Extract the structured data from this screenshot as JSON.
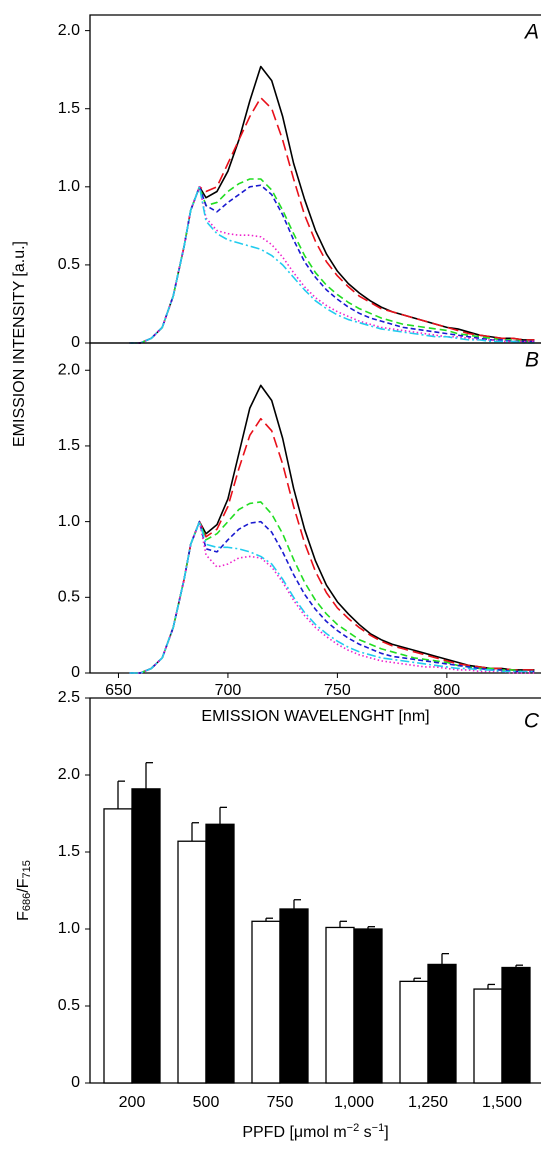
{
  "chart_data": [
    {
      "type": "line",
      "label": "A",
      "ylabel": "EMISSION INTENSITY [a.u.]",
      "x": [
        655,
        660,
        665,
        670,
        675,
        680,
        683,
        687,
        690,
        695,
        700,
        705,
        710,
        715,
        720,
        725,
        730,
        735,
        740,
        745,
        750,
        755,
        760,
        765,
        770,
        775,
        780,
        785,
        790,
        795,
        800,
        805,
        810,
        815,
        820,
        825,
        830,
        835,
        840
      ],
      "xlim": [
        637,
        843
      ],
      "ylim": [
        0,
        2.1
      ],
      "yticks": [
        0,
        0.5,
        {
          "value": 1,
          "label": "1.0"
        },
        1.5,
        {
          "value": 2,
          "label": "2.0"
        }
      ],
      "series": [
        {
          "color": "#000000",
          "linestyle": "solid",
          "values": [
            0,
            0,
            0.03,
            0.1,
            0.3,
            0.62,
            0.85,
            1.0,
            0.93,
            0.97,
            1.1,
            1.3,
            1.55,
            1.77,
            1.68,
            1.45,
            1.15,
            0.92,
            0.72,
            0.57,
            0.46,
            0.38,
            0.32,
            0.27,
            0.23,
            0.2,
            0.18,
            0.16,
            0.14,
            0.12,
            0.1,
            0.09,
            0.07,
            0.05,
            0.04,
            0.03,
            0.03,
            0.02,
            0.02
          ]
        },
        {
          "color": "#e8101a",
          "linestyle": "long-dash",
          "values": [
            0,
            0,
            0.03,
            0.1,
            0.3,
            0.62,
            0.85,
            1.0,
            0.97,
            1.0,
            1.15,
            1.3,
            1.45,
            1.57,
            1.5,
            1.3,
            1.05,
            0.82,
            0.65,
            0.52,
            0.43,
            0.36,
            0.3,
            0.26,
            0.22,
            0.2,
            0.18,
            0.16,
            0.14,
            0.12,
            0.1,
            0.08,
            0.06,
            0.05,
            0.04,
            0.03,
            0.03,
            0.02,
            0.02
          ]
        },
        {
          "color": "#22dd22",
          "linestyle": "dash",
          "values": [
            0,
            0,
            0.03,
            0.1,
            0.3,
            0.62,
            0.85,
            1.0,
            0.88,
            0.9,
            0.97,
            1.02,
            1.05,
            1.05,
            0.98,
            0.85,
            0.7,
            0.56,
            0.45,
            0.37,
            0.31,
            0.26,
            0.22,
            0.19,
            0.16,
            0.14,
            0.12,
            0.11,
            0.1,
            0.09,
            0.08,
            0.06,
            0.05,
            0.04,
            0.03,
            0.02,
            0.02,
            0.01,
            0.01
          ]
        },
        {
          "color": "#1a1ad0",
          "linestyle": "short-dash",
          "values": [
            0,
            0,
            0.03,
            0.1,
            0.3,
            0.62,
            0.85,
            1.0,
            0.88,
            0.84,
            0.9,
            0.95,
            1.0,
            1.01,
            0.95,
            0.82,
            0.66,
            0.52,
            0.42,
            0.34,
            0.28,
            0.23,
            0.19,
            0.16,
            0.14,
            0.12,
            0.1,
            0.09,
            0.08,
            0.07,
            0.06,
            0.05,
            0.04,
            0.03,
            0.02,
            0.02,
            0.01,
            0.01,
            0.01
          ]
        },
        {
          "color": "#ee22cc",
          "linestyle": "dot",
          "values": [
            0,
            0,
            0.03,
            0.1,
            0.3,
            0.62,
            0.85,
            1.0,
            0.8,
            0.72,
            0.7,
            0.69,
            0.69,
            0.68,
            0.63,
            0.55,
            0.45,
            0.36,
            0.29,
            0.24,
            0.2,
            0.17,
            0.14,
            0.12,
            0.1,
            0.09,
            0.08,
            0.07,
            0.06,
            0.05,
            0.04,
            0.04,
            0.03,
            0.02,
            0.02,
            0.01,
            0.01,
            0.01,
            0.01
          ]
        },
        {
          "color": "#22ccee",
          "linestyle": "dash-dot",
          "values": [
            0,
            0,
            0.03,
            0.1,
            0.3,
            0.62,
            0.85,
            1.0,
            0.78,
            0.7,
            0.66,
            0.64,
            0.62,
            0.6,
            0.56,
            0.5,
            0.42,
            0.34,
            0.27,
            0.22,
            0.18,
            0.15,
            0.13,
            0.11,
            0.09,
            0.08,
            0.07,
            0.06,
            0.05,
            0.04,
            0.04,
            0.03,
            0.02,
            0.02,
            0.01,
            0.01,
            0.01,
            0,
            0
          ]
        }
      ]
    },
    {
      "type": "line",
      "label": "B",
      "xlabel": "EMISSION WAVELENGHT [nm]",
      "x": [
        655,
        660,
        665,
        670,
        675,
        680,
        683,
        687,
        690,
        695,
        700,
        705,
        710,
        715,
        720,
        725,
        730,
        735,
        740,
        745,
        750,
        755,
        760,
        765,
        770,
        775,
        780,
        785,
        790,
        795,
        800,
        805,
        810,
        815,
        820,
        825,
        830,
        835,
        840
      ],
      "xlim": [
        637,
        843
      ],
      "xticks": [
        650,
        700,
        750,
        800
      ],
      "ylim": [
        0,
        2.18
      ],
      "yticks": [
        0,
        0.5,
        {
          "value": 1,
          "label": "1.0"
        },
        1.5,
        {
          "value": 2,
          "label": "2.0"
        }
      ],
      "series": [
        {
          "color": "#000000",
          "linestyle": "solid",
          "values": [
            0,
            0,
            0.03,
            0.1,
            0.3,
            0.62,
            0.85,
            1.0,
            0.92,
            0.98,
            1.15,
            1.45,
            1.75,
            1.9,
            1.8,
            1.55,
            1.22,
            0.95,
            0.74,
            0.58,
            0.47,
            0.39,
            0.32,
            0.26,
            0.22,
            0.19,
            0.17,
            0.15,
            0.13,
            0.11,
            0.09,
            0.07,
            0.05,
            0.04,
            0.03,
            0.03,
            0.02,
            0.02,
            0.02
          ]
        },
        {
          "color": "#e8101a",
          "linestyle": "long-dash",
          "values": [
            0,
            0,
            0.03,
            0.1,
            0.3,
            0.62,
            0.85,
            1.0,
            0.9,
            0.95,
            1.1,
            1.35,
            1.57,
            1.68,
            1.6,
            1.38,
            1.1,
            0.86,
            0.67,
            0.53,
            0.43,
            0.36,
            0.3,
            0.25,
            0.21,
            0.18,
            0.16,
            0.14,
            0.12,
            0.1,
            0.08,
            0.06,
            0.05,
            0.04,
            0.03,
            0.03,
            0.02,
            0.02,
            0.02
          ]
        },
        {
          "color": "#22dd22",
          "linestyle": "dash",
          "values": [
            0,
            0,
            0.03,
            0.1,
            0.3,
            0.62,
            0.85,
            1.0,
            0.88,
            0.92,
            1.0,
            1.08,
            1.12,
            1.13,
            1.05,
            0.92,
            0.75,
            0.6,
            0.48,
            0.39,
            0.32,
            0.27,
            0.22,
            0.19,
            0.16,
            0.14,
            0.12,
            0.1,
            0.09,
            0.08,
            0.07,
            0.05,
            0.04,
            0.03,
            0.03,
            0.02,
            0.02,
            0.01,
            0.01
          ]
        },
        {
          "color": "#1a1ad0",
          "linestyle": "short-dash",
          "values": [
            0,
            0,
            0.03,
            0.1,
            0.3,
            0.62,
            0.85,
            1.0,
            0.82,
            0.8,
            0.88,
            0.95,
            0.99,
            1.0,
            0.93,
            0.8,
            0.65,
            0.52,
            0.42,
            0.34,
            0.28,
            0.23,
            0.19,
            0.16,
            0.13,
            0.11,
            0.1,
            0.09,
            0.08,
            0.07,
            0.06,
            0.05,
            0.04,
            0.03,
            0.02,
            0.02,
            0.01,
            0.01,
            0.01
          ]
        },
        {
          "color": "#ee22cc",
          "linestyle": "dot",
          "values": [
            0,
            0,
            0.03,
            0.1,
            0.3,
            0.62,
            0.85,
            1.0,
            0.78,
            0.7,
            0.72,
            0.76,
            0.77,
            0.76,
            0.7,
            0.6,
            0.48,
            0.38,
            0.3,
            0.24,
            0.19,
            0.15,
            0.12,
            0.1,
            0.08,
            0.07,
            0.06,
            0.05,
            0.04,
            0.04,
            0.03,
            0.02,
            0.02,
            0.01,
            0.01,
            0.01,
            0,
            0,
            0
          ]
        },
        {
          "color": "#22ccee",
          "linestyle": "dash-dot",
          "values": [
            0,
            0,
            0.03,
            0.1,
            0.3,
            0.62,
            0.85,
            1.0,
            0.85,
            0.83,
            0.83,
            0.82,
            0.8,
            0.77,
            0.72,
            0.62,
            0.5,
            0.4,
            0.32,
            0.26,
            0.21,
            0.17,
            0.14,
            0.12,
            0.1,
            0.09,
            0.08,
            0.07,
            0.06,
            0.05,
            0.04,
            0.03,
            0.03,
            0.02,
            0.02,
            0.01,
            0.01,
            0.01,
            0.01
          ]
        }
      ]
    },
    {
      "type": "bar",
      "label": "C",
      "ylabel": [
        "F",
        "686",
        "/F",
        "715"
      ],
      "xlabel": [
        "PPFD [μmol m",
        "−2",
        " s",
        "−1",
        "]"
      ],
      "categories": [
        "200",
        "500",
        "750",
        "1,000",
        "1,250",
        "1,500"
      ],
      "ylim": [
        0,
        2.5
      ],
      "yticks": [
        0,
        0.5,
        {
          "value": 1,
          "label": "1.0"
        },
        1.5,
        {
          "value": 2,
          "label": "2.0"
        },
        2.5
      ],
      "series": [
        {
          "color": "#ffffff",
          "values": [
            1.78,
            1.57,
            1.05,
            1.01,
            0.66,
            0.61
          ],
          "errors": [
            0.18,
            0.12,
            0.02,
            0.04,
            0.02,
            0.03
          ]
        },
        {
          "color": "#000000",
          "values": [
            1.91,
            1.68,
            1.13,
            1.0,
            0.77,
            0.75
          ],
          "errors": [
            0.17,
            0.11,
            0.06,
            0.015,
            0.07,
            0.015
          ]
        }
      ]
    }
  ]
}
